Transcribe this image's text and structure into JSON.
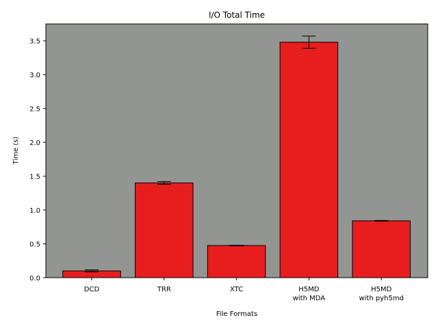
{
  "chart_data": {
    "type": "bar",
    "title": "I/O Total Time",
    "xlabel": "File Formats",
    "ylabel": "Time (s)",
    "categories": [
      [
        "DCD"
      ],
      [
        "TRR"
      ],
      [
        "XTC"
      ],
      [
        "H5MD",
        "with MDA"
      ],
      [
        "H5MD",
        "with pyh5md"
      ]
    ],
    "values": [
      0.1,
      1.4,
      0.475,
      3.48,
      0.84
    ],
    "errors": [
      0.015,
      0.02,
      0.005,
      0.09,
      0.005
    ],
    "ylim": [
      0,
      3.75
    ],
    "yticks": [
      "0.0",
      "0.5",
      "1.0",
      "1.5",
      "2.0",
      "2.5",
      "3.0",
      "3.5"
    ],
    "grid": false,
    "colors": {
      "plot_background": "#939592",
      "bar_fill": "#e81e1e",
      "bar_edge": "#000000",
      "axis": "#000000"
    }
  }
}
